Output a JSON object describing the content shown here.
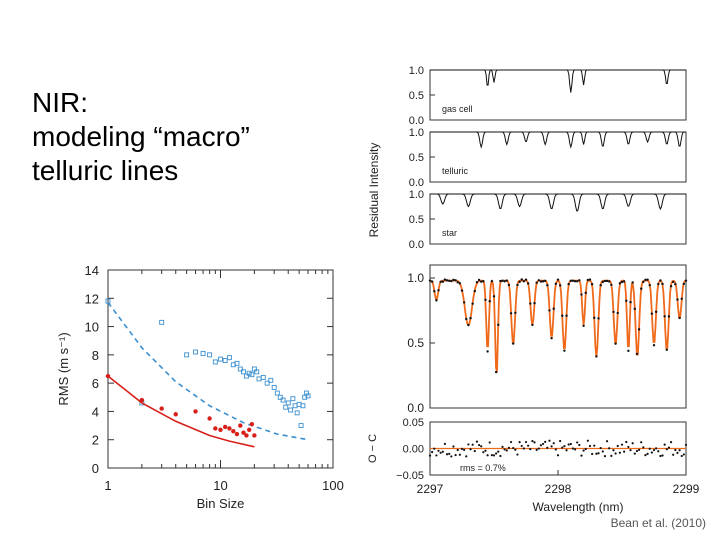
{
  "slide": {
    "title_lines": [
      "NIR:",
      "modeling “macro”",
      "telluric lines"
    ],
    "credit": "Bean et al. (2010)"
  },
  "colors": {
    "blue": "#3b8fd0",
    "red": "#d8201a",
    "orange": "#f06a1c",
    "black": "#111111"
  },
  "chart_data": [
    {
      "type": "scatter",
      "xlabel": "Bin Size",
      "ylabel": "RMS (m s⁻¹)",
      "x_scale": "log",
      "xlim": [
        1,
        100
      ],
      "ylim": [
        0,
        14
      ],
      "x_ticks": [
        "1",
        "10",
        "100"
      ],
      "y_ticks": [
        "0",
        "2",
        "4",
        "6",
        "8",
        "10",
        "12",
        "14"
      ],
      "series": [
        {
          "style": "open-squares",
          "color": "#3b8fd0",
          "points": [
            [
              1,
              11.8
            ],
            [
              2,
              4.6
            ],
            [
              3,
              10.3
            ],
            [
              5,
              8.0
            ],
            [
              6,
              8.2
            ],
            [
              7,
              8.1
            ],
            [
              8,
              8.0
            ],
            [
              9,
              7.5
            ],
            [
              10,
              7.7
            ],
            [
              11,
              7.6
            ],
            [
              12,
              7.8
            ],
            [
              13,
              7.3
            ],
            [
              14,
              7.4
            ],
            [
              15,
              7.0
            ],
            [
              16,
              6.8
            ],
            [
              17,
              6.5
            ],
            [
              18,
              6.7
            ],
            [
              19,
              6.6
            ],
            [
              20,
              7.0
            ],
            [
              21,
              6.8
            ],
            [
              22,
              6.3
            ],
            [
              24,
              6.4
            ],
            [
              26,
              6.0
            ],
            [
              28,
              6.2
            ],
            [
              30,
              5.7
            ],
            [
              32,
              5.3
            ],
            [
              34,
              5.0
            ],
            [
              36,
              4.8
            ],
            [
              38,
              4.3
            ],
            [
              40,
              4.6
            ],
            [
              42,
              4.1
            ],
            [
              44,
              4.9
            ],
            [
              46,
              4.4
            ],
            [
              48,
              3.9
            ],
            [
              50,
              4.5
            ],
            [
              52,
              3.0
            ],
            [
              54,
              4.4
            ],
            [
              56,
              5.0
            ],
            [
              58,
              5.3
            ],
            [
              60,
              5.1
            ]
          ]
        },
        {
          "style": "dashed-line",
          "color": "#3b8fd0",
          "points": [
            [
              1,
              11.7
            ],
            [
              2,
              8.5
            ],
            [
              4,
              6.1
            ],
            [
              8,
              4.4
            ],
            [
              16,
              3.2
            ],
            [
              32,
              2.4
            ],
            [
              60,
              2.0
            ]
          ]
        },
        {
          "style": "filled-circles",
          "color": "#d8201a",
          "points": [
            [
              1,
              6.5
            ],
            [
              2,
              4.8
            ],
            [
              3,
              4.2
            ],
            [
              4,
              3.8
            ],
            [
              6,
              4.0
            ],
            [
              8,
              3.5
            ],
            [
              9,
              2.8
            ],
            [
              10,
              2.7
            ],
            [
              11,
              2.9
            ],
            [
              12,
              2.8
            ],
            [
              13,
              2.6
            ],
            [
              14,
              2.4
            ],
            [
              15,
              3.0
            ],
            [
              16,
              2.5
            ],
            [
              17,
              2.3
            ],
            [
              18,
              2.7
            ],
            [
              19,
              3.1
            ],
            [
              20,
              2.3
            ]
          ]
        },
        {
          "style": "solid-line",
          "color": "#d8201a",
          "points": [
            [
              1,
              6.5
            ],
            [
              2,
              4.6
            ],
            [
              4,
              3.3
            ],
            [
              8,
              2.3
            ],
            [
              12,
              1.9
            ],
            [
              20,
              1.5
            ]
          ]
        }
      ]
    },
    {
      "type": "line",
      "ylabel": "Residual Intensity",
      "xlabel": "Wavelength (nm)",
      "xlim": [
        2297,
        2299
      ],
      "x_ticks": [
        "2297",
        "2298",
        "2299"
      ],
      "panels": [
        {
          "label": "gas cell",
          "y_ticks": [
            "0.0",
            "0.5",
            "1.0"
          ],
          "ylim": [
            0,
            1
          ],
          "lines": [
            [
              2297.45,
              0.35,
              0.01
            ],
            [
              2297.5,
              0.25,
              0.01
            ],
            [
              2298.1,
              0.45,
              0.012
            ],
            [
              2298.2,
              0.3,
              0.01
            ],
            [
              2298.85,
              0.3,
              0.012
            ]
          ]
        },
        {
          "label": "telluric",
          "y_ticks": [
            "0.0",
            "0.5",
            "1.0"
          ],
          "ylim": [
            0,
            1
          ],
          "lines": [
            [
              2297.4,
              0.3,
              0.015
            ],
            [
              2297.6,
              0.25,
              0.015
            ],
            [
              2297.75,
              0.2,
              0.015
            ],
            [
              2297.9,
              0.25,
              0.015
            ],
            [
              2298.1,
              0.3,
              0.015
            ],
            [
              2298.2,
              0.25,
              0.012
            ],
            [
              2298.35,
              0.3,
              0.015
            ],
            [
              2298.55,
              0.25,
              0.015
            ],
            [
              2298.7,
              0.2,
              0.015
            ],
            [
              2298.85,
              0.25,
              0.015
            ],
            [
              2298.95,
              0.3,
              0.015
            ]
          ]
        },
        {
          "label": "star",
          "y_ticks": [
            "0.0",
            "0.5",
            "1.0"
          ],
          "ylim": [
            0,
            1
          ],
          "lines": [
            [
              2297.1,
              0.2,
              0.02
            ],
            [
              2297.3,
              0.25,
              0.02
            ],
            [
              2297.55,
              0.3,
              0.02
            ],
            [
              2297.7,
              0.25,
              0.02
            ],
            [
              2297.95,
              0.3,
              0.02
            ],
            [
              2298.15,
              0.35,
              0.02
            ],
            [
              2298.35,
              0.3,
              0.02
            ],
            [
              2298.55,
              0.25,
              0.02
            ],
            [
              2298.8,
              0.3,
              0.02
            ]
          ]
        },
        {
          "label": "",
          "y_ticks": [
            "0.0",
            "0.5",
            "1.0"
          ],
          "ylim": [
            0,
            1.1
          ],
          "lines": [
            [
              2297.05,
              0.15,
              0.02
            ],
            [
              2297.3,
              0.35,
              0.04
            ],
            [
              2297.45,
              0.55,
              0.015
            ],
            [
              2297.52,
              0.75,
              0.015
            ],
            [
              2297.65,
              0.5,
              0.02
            ],
            [
              2297.8,
              0.35,
              0.02
            ],
            [
              2297.95,
              0.45,
              0.02
            ],
            [
              2298.05,
              0.55,
              0.02
            ],
            [
              2298.2,
              0.35,
              0.015
            ],
            [
              2298.3,
              0.6,
              0.02
            ],
            [
              2298.45,
              0.5,
              0.02
            ],
            [
              2298.55,
              0.55,
              0.015
            ],
            [
              2298.62,
              0.6,
              0.02
            ],
            [
              2298.75,
              0.5,
              0.02
            ],
            [
              2298.85,
              0.55,
              0.02
            ],
            [
              2298.95,
              0.3,
              0.02
            ]
          ]
        }
      ],
      "residual_panel": {
        "label": "rms = 0.7%",
        "ylabel": "O − C",
        "y_ticks": [
          "−0.05",
          "0.00",
          "0.05"
        ],
        "ylim": [
          -0.05,
          0.05
        ]
      }
    }
  ]
}
